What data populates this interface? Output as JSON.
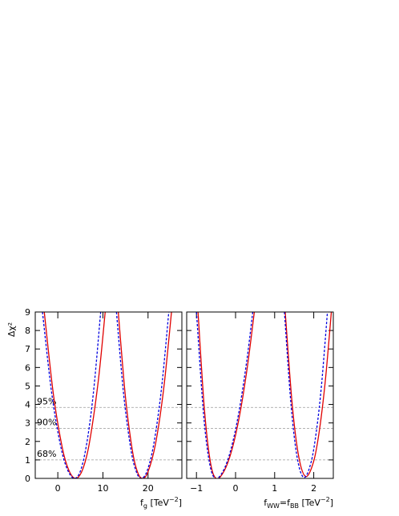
{
  "chart_data": [
    {
      "type": "line",
      "ylabel": "Δχ²",
      "xlabel": [
        {
          "text": "f"
        },
        {
          "text": "g",
          "sub": true
        },
        {
          "text": " [TeV"
        },
        {
          "text": "−2",
          "sup": true
        },
        {
          "text": "]"
        }
      ],
      "xlim": [
        -5,
        27.5
      ],
      "xticks": [
        0,
        10,
        20
      ],
      "ylim": [
        0,
        9
      ],
      "yticks": [
        0,
        1,
        2,
        3,
        4,
        5,
        6,
        7,
        8,
        9
      ],
      "show_ytick_labels": true,
      "reference_lines": [
        {
          "value": 1,
          "label": "68%"
        },
        {
          "value": 2.71,
          "label": "90%"
        },
        {
          "value": 3.84,
          "label": "95%"
        }
      ],
      "series": [
        {
          "color": "#e00000",
          "dashed": false,
          "x": [
            -3,
            -1,
            1,
            2.5,
            4,
            5.5,
            7,
            9,
            10.5
          ],
          "values": [
            9,
            4.59,
            1.65,
            0.41,
            0,
            0.48,
            1.92,
            5.33,
            9
          ]
        },
        {
          "color": "#e00000",
          "dashed": false,
          "x": [
            13.4,
            15,
            16.5,
            17.6,
            18.7,
            20,
            21.7,
            23.5,
            25.2
          ],
          "values": [
            9,
            4.39,
            1.55,
            0.39,
            0,
            0.36,
            1.92,
            4.91,
            9
          ]
        },
        {
          "color": "#0000e0",
          "dashed": true,
          "x": [
            -3.4,
            -1.4,
            0.6,
            2.2,
            3.8,
            5.2,
            6.6,
            8,
            9.5
          ],
          "values": [
            9,
            4.69,
            1.78,
            0.44,
            0,
            0.54,
            2.17,
            4.89,
            9
          ]
        },
        {
          "color": "#0000e0",
          "dashed": true,
          "x": [
            13,
            14.6,
            16.2,
            17.4,
            18.5,
            19.8,
            21.3,
            23,
            24.6
          ],
          "values": [
            9,
            4.53,
            1.57,
            0.36,
            0,
            0.41,
            1.9,
            4.9,
            9
          ]
        }
      ]
    },
    {
      "type": "line",
      "xlabel": [
        {
          "text": "f"
        },
        {
          "text": "WW",
          "sub": true
        },
        {
          "text": "=f"
        },
        {
          "text": "BB",
          "sub": true
        },
        {
          "text": " [TeV"
        },
        {
          "text": "−2",
          "sup": true
        },
        {
          "text": "]"
        }
      ],
      "xlim": [
        -1.25,
        2.5
      ],
      "xticks": [
        {
          "value": -1,
          "label": "−1"
        },
        0,
        1,
        2
      ],
      "ylim": [
        0,
        9
      ],
      "yticks": [
        0,
        1,
        2,
        3,
        4,
        5,
        6,
        7,
        8,
        9
      ],
      "show_ytick_labels": false,
      "reference_lines": [
        {
          "value": 1
        },
        {
          "value": 2.71
        },
        {
          "value": 3.84
        }
      ],
      "series": [
        {
          "color": "#e00000",
          "dashed": false,
          "x": [
            -0.96,
            -0.8,
            -0.65,
            -0.5,
            -0.3,
            -0.1,
            0.1,
            0.3,
            0.48
          ],
          "values": [
            9,
            3.83,
            0.96,
            0,
            0.37,
            1.5,
            3.37,
            6,
            9
          ]
        },
        {
          "color": "#e00000",
          "dashed": false,
          "x": [
            1.27,
            1.45,
            1.62,
            1.8,
            2,
            2.15,
            2.3,
            2.45
          ],
          "values": [
            9,
            3.98,
            1.13,
            0.1,
            0.94,
            2.68,
            5.37,
            9
          ]
        },
        {
          "color": "#0000e0",
          "dashed": true,
          "x": [
            -1,
            -0.82,
            -0.67,
            -0.52,
            -0.32,
            -0.12,
            0.08,
            0.28,
            0.44
          ],
          "values": [
            9,
            3.52,
            0.88,
            0,
            0.39,
            1.56,
            3.52,
            6.25,
            9
          ]
        },
        {
          "color": "#0000e0",
          "dashed": true,
          "x": [
            1.25,
            1.42,
            1.58,
            1.75,
            1.93,
            2.07,
            2.2,
            2.35
          ],
          "values": [
            9,
            3.95,
            1.08,
            0.05,
            0.86,
            2.6,
            5.08,
            9
          ]
        }
      ]
    }
  ]
}
